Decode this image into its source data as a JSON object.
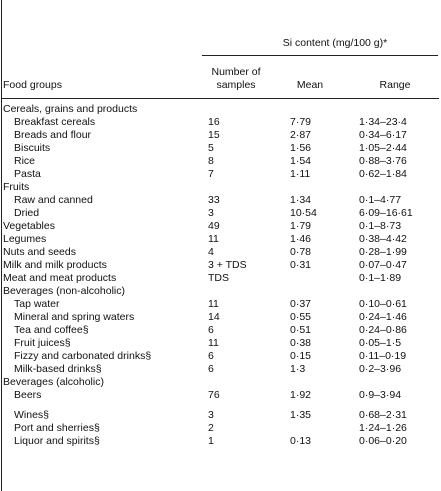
{
  "header": {
    "si_content": "Si content (mg/100 g)*",
    "food_groups": "Food groups",
    "number_line1": "Number of",
    "number_line2": "samples",
    "mean": "Mean",
    "range": "Range"
  },
  "rows": [
    {
      "label": "Cereals, grains and products",
      "indent": false,
      "samples": "",
      "mean": "",
      "range": ""
    },
    {
      "label": "Breakfast cereals",
      "indent": true,
      "samples": "16",
      "mean": "7·79",
      "range": "1·34–23·4"
    },
    {
      "label": "Breads and flour",
      "indent": true,
      "samples": "15",
      "mean": "2·87",
      "range": "0·34–6·17"
    },
    {
      "label": "Biscuits",
      "indent": true,
      "samples": "5",
      "mean": "1·56",
      "range": "1·05–2·44"
    },
    {
      "label": "Rice",
      "indent": true,
      "samples": "8",
      "mean": "1·54",
      "range": "0·88–3·76"
    },
    {
      "label": "Pasta",
      "indent": true,
      "samples": "7",
      "mean": "1·11",
      "range": "0·62–1·84"
    },
    {
      "label": "Fruits",
      "indent": false,
      "samples": "",
      "mean": "",
      "range": ""
    },
    {
      "label": "Raw and canned",
      "indent": true,
      "samples": "33",
      "mean": "1·34",
      "range": "0·1–4·77"
    },
    {
      "label": "Dried",
      "indent": true,
      "samples": "3",
      "mean": "10·54",
      "range": "6·09–16·61"
    },
    {
      "label": "Vegetables",
      "indent": false,
      "samples": "49",
      "mean": "1·79",
      "range": "0·1–8·73"
    },
    {
      "label": "Legumes",
      "indent": false,
      "samples": "11",
      "mean": "1·46",
      "range": "0·38–4·42"
    },
    {
      "label": "Nuts and seeds",
      "indent": false,
      "samples": "4",
      "mean": "0·78",
      "range": "0·28–1·99"
    },
    {
      "label": "Milk and milk products",
      "indent": false,
      "samples": "3 + TDS",
      "mean": "0·31",
      "range": "0·07–0·47"
    },
    {
      "label": "Meat and meat products",
      "indent": false,
      "samples": "TDS",
      "mean": "",
      "range": "0·1–1·89"
    },
    {
      "label": "Beverages (non-alcoholic)",
      "indent": false,
      "samples": "",
      "mean": "",
      "range": ""
    },
    {
      "label": "Tap water",
      "indent": true,
      "samples": "11",
      "mean": "0·37",
      "range": "0·10–0·61"
    },
    {
      "label": "Mineral and spring waters",
      "indent": true,
      "samples": "14",
      "mean": "0·55",
      "range": "0·24–1·46"
    },
    {
      "label": "Tea and coffee§",
      "indent": true,
      "samples": "6",
      "mean": "0·51",
      "range": "0·24–0·86"
    },
    {
      "label": "Fruit juices§",
      "indent": true,
      "samples": "11",
      "mean": "0·38",
      "range": "0·05–1·5"
    },
    {
      "label": "Fizzy and carbonated drinks§",
      "indent": true,
      "samples": "6",
      "mean": "0·15",
      "range": "0·11–0·19"
    },
    {
      "label": "Milk-based drinks§",
      "indent": true,
      "samples": "6",
      "mean": "1·3",
      "range": "0·2–3·96"
    },
    {
      "label": "Beverages (alcoholic)",
      "indent": false,
      "samples": "",
      "mean": "",
      "range": ""
    },
    {
      "label": "Beers",
      "indent": true,
      "samples": "76",
      "mean": "1·92",
      "range": "0·9–3·94"
    },
    {
      "label": "Wines§",
      "indent": true,
      "samples": "3",
      "mean": "1·35",
      "range": "0·68–2·31"
    },
    {
      "label": "Port and sherries§",
      "indent": true,
      "samples": "2",
      "mean": "",
      "range": "1·24–1·26"
    },
    {
      "label": "Liquor and spirits§",
      "indent": true,
      "samples": "1",
      "mean": "0·13",
      "range": "0·06–0·20"
    }
  ]
}
